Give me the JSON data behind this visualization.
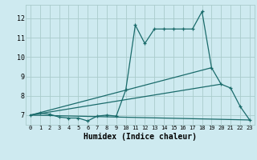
{
  "xlabel": "Humidex (Indice chaleur)",
  "bg_color": "#ceeaf0",
  "grid_color": "#aacccc",
  "line_color": "#1a6b6b",
  "xlim": [
    -0.5,
    23.5
  ],
  "ylim": [
    6.5,
    12.7
  ],
  "yticks": [
    7,
    8,
    9,
    10,
    11,
    12
  ],
  "xticks": [
    0,
    1,
    2,
    3,
    4,
    5,
    6,
    7,
    8,
    9,
    10,
    11,
    12,
    13,
    14,
    15,
    16,
    17,
    18,
    19,
    20,
    21,
    22,
    23
  ],
  "series1_x": [
    0,
    1,
    2,
    3,
    4,
    5,
    6,
    7,
    8,
    9,
    10,
    11,
    12,
    13,
    14,
    15,
    16,
    17,
    18,
    19,
    20,
    21,
    22,
    23
  ],
  "series1_y": [
    7.0,
    7.1,
    7.05,
    6.9,
    6.85,
    6.85,
    6.7,
    6.95,
    7.0,
    6.95,
    8.3,
    11.65,
    10.7,
    11.45,
    11.45,
    11.45,
    11.45,
    11.45,
    12.35,
    9.45,
    8.6,
    8.4,
    7.45,
    6.75
  ],
  "line2_x": [
    0,
    19
  ],
  "line2_y": [
    7.0,
    9.45
  ],
  "line3_x": [
    0,
    20
  ],
  "line3_y": [
    7.0,
    8.6
  ],
  "line4_x": [
    0,
    23
  ],
  "line4_y": [
    7.0,
    6.75
  ]
}
